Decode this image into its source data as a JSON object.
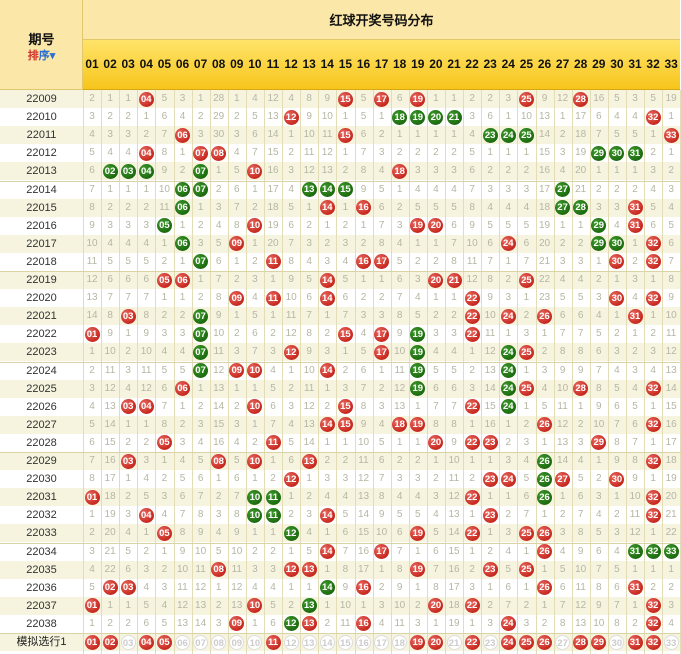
{
  "header": {
    "period_label": "期号",
    "sort_label_a": "排",
    "sort_label_b": "序▾",
    "title": "红球开奖号码分布"
  },
  "numbers": [
    "01",
    "02",
    "03",
    "04",
    "05",
    "06",
    "07",
    "08",
    "09",
    "10",
    "11",
    "12",
    "13",
    "14",
    "15",
    "16",
    "17",
    "18",
    "19",
    "20",
    "21",
    "22",
    "23",
    "24",
    "25",
    "26",
    "27",
    "28",
    "29",
    "30",
    "31",
    "32",
    "33"
  ],
  "colors": {
    "red_ball": "#c7271d",
    "green_ball": "#1c6a0f",
    "header_yellow": "#f7c51c",
    "omission_text": "#b6b6a4"
  },
  "rows": [
    {
      "issue": "22009",
      "balls": [
        4,
        15,
        17,
        19,
        25,
        28
      ],
      "repeat": [],
      "omit": [
        2,
        1,
        1,
        0,
        5,
        3,
        1,
        28,
        1,
        4,
        12,
        4,
        8,
        9,
        0,
        5,
        0,
        6,
        0,
        1,
        1,
        2,
        2,
        3,
        0,
        9,
        12,
        0,
        16,
        5,
        3,
        5,
        19
      ]
    },
    {
      "issue": "22010",
      "balls": [
        12,
        18,
        19,
        20,
        21,
        32
      ],
      "repeat": [
        18,
        19,
        20,
        21
      ],
      "omit": [
        3,
        2,
        2,
        1,
        6,
        4,
        2,
        29,
        2,
        5,
        13,
        0,
        9,
        10,
        1,
        5,
        1,
        0,
        0,
        0,
        0,
        3,
        6,
        1,
        10,
        13,
        1,
        17,
        6,
        4,
        4,
        0,
        1
      ]
    },
    {
      "issue": "22011",
      "balls": [
        6,
        15,
        23,
        24,
        25,
        33
      ],
      "repeat": [
        23,
        24,
        25
      ],
      "omit": [
        4,
        3,
        3,
        2,
        7,
        0,
        3,
        30,
        3,
        6,
        14,
        1,
        10,
        11,
        0,
        6,
        2,
        1,
        1,
        1,
        1,
        4,
        0,
        0,
        0,
        14,
        2,
        18,
        7,
        5,
        5,
        1,
        0
      ]
    },
    {
      "issue": "22012",
      "balls": [
        4,
        7,
        8,
        29,
        30,
        31
      ],
      "repeat": [
        29,
        30,
        31
      ],
      "omit": [
        5,
        4,
        4,
        0,
        8,
        1,
        0,
        0,
        4,
        7,
        15,
        2,
        11,
        12,
        1,
        7,
        3,
        2,
        2,
        2,
        2,
        5,
        1,
        1,
        1,
        15,
        3,
        19,
        0,
        0,
        0,
        2,
        1
      ]
    },
    {
      "issue": "22013",
      "balls": [
        2,
        3,
        4,
        7,
        10,
        18
      ],
      "repeat": [
        2,
        3,
        4,
        7
      ],
      "omit": [
        6,
        0,
        0,
        0,
        9,
        2,
        0,
        1,
        5,
        0,
        16,
        3,
        12,
        13,
        2,
        8,
        4,
        0,
        3,
        3,
        3,
        6,
        2,
        2,
        2,
        16,
        4,
        20,
        1,
        1,
        1,
        3,
        2
      ]
    },
    {
      "issue": "22014",
      "balls": [
        6,
        7,
        13,
        14,
        15,
        27
      ],
      "repeat": [
        6,
        7,
        13,
        14,
        15,
        27
      ],
      "omit": [
        7,
        1,
        1,
        1,
        10,
        0,
        0,
        2,
        6,
        1,
        17,
        4,
        0,
        0,
        0,
        9,
        5,
        1,
        4,
        4,
        4,
        7,
        3,
        3,
        3,
        17,
        0,
        21,
        2,
        2,
        2,
        4,
        3
      ]
    },
    {
      "issue": "22015",
      "balls": [
        6,
        14,
        16,
        27,
        28,
        31
      ],
      "repeat": [
        6,
        27,
        28
      ],
      "omit": [
        8,
        2,
        2,
        2,
        11,
        0,
        1,
        3,
        7,
        2,
        18,
        5,
        1,
        0,
        1,
        0,
        6,
        2,
        5,
        5,
        5,
        8,
        4,
        4,
        4,
        18,
        0,
        0,
        3,
        3,
        0,
        5,
        4
      ]
    },
    {
      "issue": "22016",
      "balls": [
        5,
        10,
        19,
        20,
        29,
        31
      ],
      "repeat": [
        5,
        29
      ],
      "omit": [
        9,
        3,
        3,
        3,
        0,
        1,
        2,
        4,
        8,
        0,
        19,
        6,
        2,
        1,
        2,
        1,
        7,
        3,
        0,
        0,
        6,
        9,
        5,
        5,
        5,
        19,
        1,
        1,
        0,
        4,
        0,
        6,
        5
      ]
    },
    {
      "issue": "22017",
      "balls": [
        6,
        9,
        24,
        29,
        30,
        32
      ],
      "repeat": [
        6,
        29,
        30
      ],
      "omit": [
        10,
        4,
        4,
        4,
        1,
        0,
        3,
        5,
        0,
        1,
        20,
        7,
        3,
        2,
        3,
        2,
        8,
        4,
        1,
        1,
        7,
        10,
        6,
        0,
        6,
        20,
        2,
        2,
        0,
        0,
        1,
        0,
        6
      ]
    },
    {
      "issue": "22018",
      "balls": [
        7,
        11,
        16,
        17,
        30,
        32
      ],
      "repeat": [
        7
      ],
      "omit": [
        11,
        5,
        5,
        5,
        2,
        1,
        0,
        6,
        1,
        2,
        0,
        8,
        4,
        3,
        4,
        0,
        0,
        5,
        2,
        2,
        8,
        11,
        7,
        1,
        7,
        21,
        3,
        3,
        1,
        0,
        2,
        0,
        7
      ]
    },
    {
      "issue": "22019",
      "balls": [
        5,
        6,
        14,
        20,
        21,
        25
      ],
      "repeat": [],
      "omit": [
        12,
        6,
        6,
        6,
        0,
        0,
        1,
        7,
        2,
        3,
        1,
        9,
        5,
        0,
        5,
        1,
        1,
        6,
        3,
        0,
        0,
        12,
        8,
        2,
        0,
        22,
        4,
        4,
        2,
        1,
        3,
        1,
        8
      ]
    },
    {
      "issue": "22020",
      "balls": [
        9,
        11,
        14,
        22,
        30,
        32
      ],
      "repeat": [],
      "omit": [
        13,
        7,
        7,
        7,
        1,
        1,
        2,
        8,
        0,
        4,
        0,
        10,
        6,
        0,
        6,
        2,
        2,
        7,
        4,
        1,
        1,
        0,
        9,
        3,
        1,
        23,
        5,
        5,
        3,
        0,
        4,
        0,
        9
      ]
    },
    {
      "issue": "22021",
      "balls": [
        3,
        7,
        22,
        24,
        26,
        31
      ],
      "repeat": [
        7
      ],
      "omit": [
        14,
        8,
        0,
        8,
        2,
        2,
        0,
        9,
        1,
        5,
        1,
        11,
        7,
        1,
        7,
        3,
        3,
        8,
        5,
        2,
        2,
        0,
        10,
        0,
        2,
        0,
        6,
        6,
        4,
        1,
        0,
        1,
        10
      ]
    },
    {
      "issue": "22022",
      "balls": [
        1,
        7,
        15,
        17,
        19,
        22
      ],
      "repeat": [
        7,
        19
      ],
      "omit": [
        0,
        9,
        1,
        9,
        3,
        3,
        0,
        10,
        2,
        6,
        2,
        12,
        8,
        2,
        0,
        4,
        0,
        9,
        0,
        3,
        3,
        0,
        11,
        1,
        3,
        1,
        7,
        7,
        5,
        2,
        1,
        2,
        11
      ]
    },
    {
      "issue": "22023",
      "balls": [
        7,
        12,
        17,
        19,
        24,
        25
      ],
      "repeat": [
        7,
        19,
        24
      ],
      "omit": [
        1,
        10,
        2,
        10,
        4,
        4,
        0,
        11,
        3,
        7,
        3,
        0,
        9,
        3,
        1,
        5,
        0,
        10,
        0,
        4,
        4,
        1,
        12,
        0,
        0,
        2,
        8,
        8,
        6,
        3,
        2,
        3,
        12
      ]
    },
    {
      "issue": "22024",
      "balls": [
        7,
        9,
        10,
        14,
        19,
        24
      ],
      "repeat": [
        7,
        19,
        24
      ],
      "omit": [
        2,
        11,
        3,
        11,
        5,
        5,
        0,
        12,
        0,
        0,
        4,
        1,
        10,
        0,
        2,
        6,
        1,
        11,
        0,
        5,
        5,
        2,
        13,
        0,
        1,
        3,
        9,
        9,
        7,
        4,
        3,
        4,
        13
      ]
    },
    {
      "issue": "22025",
      "balls": [
        6,
        19,
        24,
        25,
        28,
        32
      ],
      "repeat": [
        19,
        24
      ],
      "omit": [
        3,
        12,
        4,
        12,
        6,
        0,
        1,
        13,
        1,
        1,
        5,
        2,
        11,
        1,
        3,
        7,
        2,
        12,
        0,
        6,
        6,
        3,
        14,
        0,
        0,
        4,
        10,
        0,
        8,
        5,
        4,
        0,
        14
      ]
    },
    {
      "issue": "22026",
      "balls": [
        3,
        4,
        10,
        15,
        22,
        24
      ],
      "repeat": [
        24
      ],
      "omit": [
        4,
        13,
        0,
        0,
        7,
        1,
        2,
        14,
        2,
        0,
        6,
        3,
        12,
        2,
        0,
        8,
        3,
        13,
        1,
        7,
        7,
        0,
        15,
        0,
        1,
        5,
        11,
        1,
        9,
        6,
        5,
        1,
        15
      ]
    },
    {
      "issue": "22027",
      "balls": [
        14,
        15,
        18,
        19,
        26,
        32
      ],
      "repeat": [],
      "omit": [
        5,
        14,
        1,
        1,
        8,
        2,
        3,
        15,
        3,
        1,
        7,
        4,
        13,
        0,
        0,
        9,
        4,
        0,
        0,
        8,
        8,
        1,
        16,
        1,
        2,
        0,
        12,
        2,
        10,
        7,
        6,
        0,
        16
      ]
    },
    {
      "issue": "22028",
      "balls": [
        5,
        11,
        20,
        22,
        23,
        29
      ],
      "repeat": [],
      "omit": [
        6,
        15,
        2,
        2,
        0,
        3,
        4,
        16,
        4,
        2,
        0,
        5,
        14,
        1,
        1,
        10,
        5,
        1,
        1,
        0,
        9,
        0,
        0,
        2,
        3,
        1,
        13,
        3,
        0,
        8,
        7,
        1,
        17
      ]
    },
    {
      "issue": "22029",
      "balls": [
        3,
        8,
        10,
        13,
        26,
        32
      ],
      "repeat": [
        26
      ],
      "omit": [
        7,
        16,
        0,
        3,
        1,
        4,
        5,
        0,
        5,
        0,
        1,
        6,
        0,
        2,
        2,
        11,
        6,
        2,
        2,
        1,
        10,
        1,
        1,
        3,
        4,
        0,
        14,
        4,
        1,
        9,
        8,
        0,
        18
      ]
    },
    {
      "issue": "22030",
      "balls": [
        12,
        23,
        24,
        26,
        27,
        30
      ],
      "repeat": [
        26
      ],
      "omit": [
        8,
        17,
        1,
        4,
        2,
        5,
        6,
        1,
        6,
        1,
        2,
        0,
        1,
        3,
        3,
        12,
        7,
        3,
        3,
        2,
        11,
        2,
        0,
        0,
        5,
        0,
        0,
        5,
        2,
        0,
        9,
        1,
        19
      ]
    },
    {
      "issue": "22031",
      "balls": [
        1,
        10,
        11,
        22,
        26,
        32
      ],
      "repeat": [
        10,
        11,
        26
      ],
      "omit": [
        0,
        18,
        2,
        5,
        3,
        6,
        7,
        2,
        7,
        0,
        0,
        1,
        2,
        4,
        4,
        13,
        8,
        4,
        4,
        3,
        12,
        0,
        1,
        1,
        6,
        0,
        1,
        6,
        3,
        1,
        10,
        0,
        20
      ]
    },
    {
      "issue": "22032",
      "balls": [
        4,
        10,
        11,
        14,
        23,
        32
      ],
      "repeat": [
        10,
        11
      ],
      "omit": [
        1,
        19,
        3,
        0,
        4,
        7,
        8,
        3,
        8,
        0,
        0,
        2,
        3,
        0,
        5,
        14,
        9,
        5,
        5,
        4,
        13,
        1,
        0,
        2,
        7,
        1,
        2,
        7,
        4,
        2,
        11,
        0,
        21
      ]
    },
    {
      "issue": "22033",
      "balls": [
        5,
        12,
        19,
        22,
        25,
        26
      ],
      "repeat": [
        12
      ],
      "omit": [
        2,
        20,
        4,
        1,
        0,
        8,
        9,
        4,
        9,
        1,
        1,
        0,
        4,
        1,
        6,
        15,
        10,
        6,
        0,
        5,
        14,
        0,
        1,
        3,
        0,
        0,
        3,
        8,
        5,
        3,
        12,
        1,
        22
      ]
    },
    {
      "issue": "22034",
      "balls": [
        14,
        17,
        26,
        31,
        32,
        33
      ],
      "repeat": [
        31,
        32,
        33
      ],
      "omit": [
        3,
        21,
        5,
        2,
        1,
        9,
        10,
        5,
        10,
        2,
        2,
        1,
        5,
        0,
        7,
        16,
        0,
        7,
        1,
        6,
        15,
        1,
        2,
        4,
        1,
        0,
        4,
        9,
        6,
        4,
        0,
        0,
        0
      ]
    },
    {
      "issue": "22035",
      "balls": [
        8,
        12,
        13,
        19,
        23,
        25
      ],
      "repeat": [],
      "omit": [
        4,
        22,
        6,
        3,
        2,
        10,
        11,
        0,
        11,
        3,
        3,
        0,
        0,
        1,
        8,
        17,
        1,
        8,
        0,
        7,
        16,
        2,
        0,
        5,
        0,
        1,
        5,
        10,
        7,
        5,
        1,
        1,
        1
      ]
    },
    {
      "issue": "22036",
      "balls": [
        2,
        3,
        14,
        16,
        26,
        31
      ],
      "repeat": [
        14
      ],
      "omit": [
        5,
        0,
        0,
        4,
        3,
        11,
        12,
        1,
        12,
        4,
        4,
        1,
        1,
        0,
        9,
        0,
        2,
        9,
        1,
        8,
        17,
        3,
        1,
        6,
        1,
        0,
        6,
        11,
        8,
        6,
        0,
        2,
        2
      ]
    },
    {
      "issue": "22037",
      "balls": [
        1,
        10,
        13,
        20,
        22,
        32
      ],
      "repeat": [
        13
      ],
      "omit": [
        0,
        1,
        1,
        5,
        4,
        12,
        13,
        2,
        13,
        0,
        5,
        2,
        0,
        1,
        10,
        1,
        3,
        10,
        2,
        0,
        18,
        0,
        2,
        7,
        2,
        1,
        7,
        12,
        9,
        7,
        1,
        0,
        3
      ]
    },
    {
      "issue": "22038",
      "balls": [
        9,
        12,
        13,
        16,
        24,
        32
      ],
      "repeat": [
        12
      ],
      "omit": [
        1,
        2,
        2,
        6,
        5,
        13,
        14,
        3,
        0,
        1,
        6,
        0,
        0,
        2,
        11,
        0,
        4,
        11,
        3,
        1,
        19,
        1,
        3,
        0,
        3,
        2,
        8,
        13,
        10,
        8,
        2,
        0,
        4
      ]
    }
  ],
  "simulation": {
    "label": "模拟选行1",
    "red": [
      1,
      2,
      4,
      5,
      11,
      19,
      20,
      22,
      24,
      25,
      26,
      28,
      29,
      31,
      32
    ],
    "ghost": [
      3,
      6,
      7,
      8,
      9,
      10,
      12,
      13,
      14,
      15,
      16,
      17,
      18,
      21,
      23,
      27,
      30,
      33
    ]
  }
}
